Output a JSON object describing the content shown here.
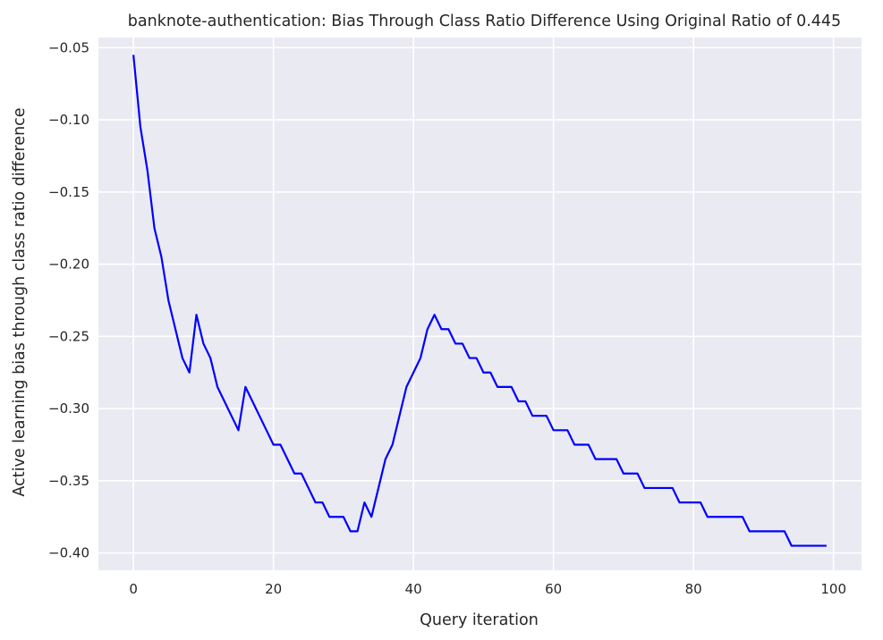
{
  "chart_data": {
    "type": "line",
    "title": "banknote-authentication: Bias Through Class Ratio Difference Using Original Ratio of 0.445",
    "xlabel": "Query iteration",
    "ylabel": "Active learning bias through class ratio difference",
    "xlim": [
      -5,
      104
    ],
    "ylim": [
      -0.412,
      -0.043
    ],
    "grid": true,
    "colors": {
      "background": "#eaeaf2",
      "grid": "#ffffff",
      "line": "#0000ff",
      "text": "#262626"
    },
    "x_ticks": [
      0,
      20,
      40,
      60,
      80,
      100
    ],
    "x_tick_labels": [
      "0",
      "20",
      "40",
      "60",
      "80",
      "100"
    ],
    "y_ticks": [
      -0.05,
      -0.1,
      -0.15,
      -0.2,
      -0.25,
      -0.3,
      -0.35,
      -0.4
    ],
    "y_tick_labels": [
      "−0.05",
      "−0.10",
      "−0.15",
      "−0.20",
      "−0.25",
      "−0.30",
      "−0.35",
      "−0.40"
    ],
    "series": [
      {
        "color": "#0000ff",
        "x": [
          0,
          1,
          2,
          3,
          4,
          5,
          6,
          7,
          8,
          9,
          10,
          11,
          12,
          13,
          14,
          15,
          16,
          17,
          18,
          19,
          20,
          21,
          22,
          23,
          24,
          25,
          26,
          27,
          28,
          29,
          30,
          31,
          32,
          33,
          34,
          35,
          36,
          37,
          38,
          39,
          40,
          41,
          42,
          43,
          44,
          45,
          46,
          47,
          48,
          49,
          50,
          51,
          52,
          53,
          54,
          55,
          56,
          57,
          58,
          59,
          60,
          61,
          62,
          63,
          64,
          65,
          66,
          67,
          68,
          69,
          70,
          71,
          72,
          73,
          74,
          75,
          76,
          77,
          78,
          79,
          80,
          81,
          82,
          83,
          84,
          85,
          86,
          87,
          88,
          89,
          90,
          91,
          92,
          93,
          94,
          95,
          96,
          97,
          98,
          99
        ],
        "y": [
          -0.055,
          -0.105,
          -0.135,
          -0.175,
          -0.195,
          -0.225,
          -0.245,
          -0.265,
          -0.275,
          -0.235,
          -0.255,
          -0.265,
          -0.285,
          -0.295,
          -0.305,
          -0.315,
          -0.285,
          -0.295,
          -0.305,
          -0.315,
          -0.325,
          -0.325,
          -0.335,
          -0.345,
          -0.345,
          -0.355,
          -0.365,
          -0.365,
          -0.375,
          -0.375,
          -0.375,
          -0.385,
          -0.385,
          -0.365,
          -0.375,
          -0.355,
          -0.335,
          -0.325,
          -0.305,
          -0.285,
          -0.275,
          -0.265,
          -0.245,
          -0.235,
          -0.245,
          -0.245,
          -0.255,
          -0.255,
          -0.265,
          -0.265,
          -0.275,
          -0.275,
          -0.285,
          -0.285,
          -0.285,
          -0.295,
          -0.295,
          -0.305,
          -0.305,
          -0.305,
          -0.315,
          -0.315,
          -0.315,
          -0.325,
          -0.325,
          -0.325,
          -0.335,
          -0.335,
          -0.335,
          -0.335,
          -0.345,
          -0.345,
          -0.345,
          -0.355,
          -0.355,
          -0.355,
          -0.355,
          -0.355,
          -0.365,
          -0.365,
          -0.365,
          -0.365,
          -0.375,
          -0.375,
          -0.375,
          -0.375,
          -0.375,
          -0.375,
          -0.385,
          -0.385,
          -0.385,
          -0.385,
          -0.385,
          -0.385,
          -0.395,
          -0.395,
          -0.395,
          -0.395,
          -0.395,
          -0.395
        ]
      }
    ]
  }
}
